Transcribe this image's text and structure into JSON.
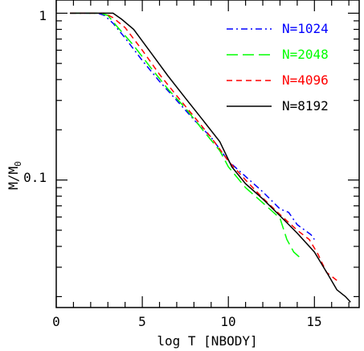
{
  "chart_data": {
    "type": "line",
    "xlabel": "log T [NBODY]",
    "ylabel": "M/M",
    "ylabel_subscript": "0",
    "xlim": [
      0,
      17.6
    ],
    "ylim": [
      0.0172,
      1.2
    ],
    "y_scale": "log",
    "x_ticks": [
      "0",
      "5",
      "10",
      "15"
    ],
    "y_ticks": [
      "1",
      "0.1"
    ],
    "legend_position": "top-right",
    "series": [
      {
        "name": "N=1024",
        "color": "#0000ff",
        "dash": "dash-dot",
        "points": [
          [
            0.8,
            1.0
          ],
          [
            2.4,
            1.0
          ],
          [
            2.8,
            0.97
          ],
          [
            3.3,
            0.87
          ],
          [
            4.0,
            0.71
          ],
          [
            5.0,
            0.52
          ],
          [
            6.0,
            0.39
          ],
          [
            7.0,
            0.3
          ],
          [
            8.0,
            0.23
          ],
          [
            9.0,
            0.18
          ],
          [
            10.0,
            0.13
          ],
          [
            11.0,
            0.105
          ],
          [
            12.0,
            0.085
          ],
          [
            13.0,
            0.067
          ],
          [
            13.5,
            0.064
          ],
          [
            14.0,
            0.054
          ],
          [
            14.8,
            0.047
          ],
          [
            15.0,
            0.044
          ]
        ]
      },
      {
        "name": "N=2048",
        "color": "#00ff00",
        "dash": "long-dash",
        "points": [
          [
            0.8,
            1.0
          ],
          [
            2.5,
            1.0
          ],
          [
            3.0,
            0.97
          ],
          [
            3.5,
            0.84
          ],
          [
            4.5,
            0.64
          ],
          [
            5.5,
            0.47
          ],
          [
            6.5,
            0.35
          ],
          [
            7.5,
            0.27
          ],
          [
            8.5,
            0.2
          ],
          [
            9.5,
            0.15
          ],
          [
            10.0,
            0.12
          ],
          [
            11.0,
            0.09
          ],
          [
            12.0,
            0.073
          ],
          [
            13.0,
            0.059
          ],
          [
            13.4,
            0.044
          ],
          [
            13.8,
            0.037
          ],
          [
            14.2,
            0.034
          ]
        ]
      },
      {
        "name": "N=4096",
        "color": "#ff0000",
        "dash": "dashed",
        "points": [
          [
            0.8,
            1.0
          ],
          [
            2.8,
            1.0
          ],
          [
            3.3,
            0.94
          ],
          [
            4.0,
            0.82
          ],
          [
            5.0,
            0.6
          ],
          [
            6.0,
            0.43
          ],
          [
            7.0,
            0.32
          ],
          [
            8.0,
            0.24
          ],
          [
            9.0,
            0.18
          ],
          [
            10.0,
            0.13
          ],
          [
            11.0,
            0.1
          ],
          [
            12.0,
            0.078
          ],
          [
            13.0,
            0.062
          ],
          [
            14.0,
            0.05
          ],
          [
            14.7,
            0.044
          ],
          [
            15.2,
            0.036
          ],
          [
            15.7,
            0.028
          ],
          [
            16.3,
            0.025
          ]
        ]
      },
      {
        "name": "N=8192",
        "color": "#000000",
        "dash": "solid",
        "points": [
          [
            0.8,
            1.0
          ],
          [
            3.3,
            1.0
          ],
          [
            3.8,
            0.92
          ],
          [
            4.5,
            0.8
          ],
          [
            5.5,
            0.58
          ],
          [
            6.5,
            0.42
          ],
          [
            7.5,
            0.31
          ],
          [
            8.5,
            0.23
          ],
          [
            9.5,
            0.17
          ],
          [
            10.2,
            0.12
          ],
          [
            11.0,
            0.095
          ],
          [
            12.0,
            0.077
          ],
          [
            13.0,
            0.061
          ],
          [
            14.0,
            0.048
          ],
          [
            15.0,
            0.037
          ],
          [
            15.8,
            0.027
          ],
          [
            16.3,
            0.022
          ],
          [
            16.8,
            0.02
          ],
          [
            17.1,
            0.0185
          ]
        ]
      }
    ]
  }
}
